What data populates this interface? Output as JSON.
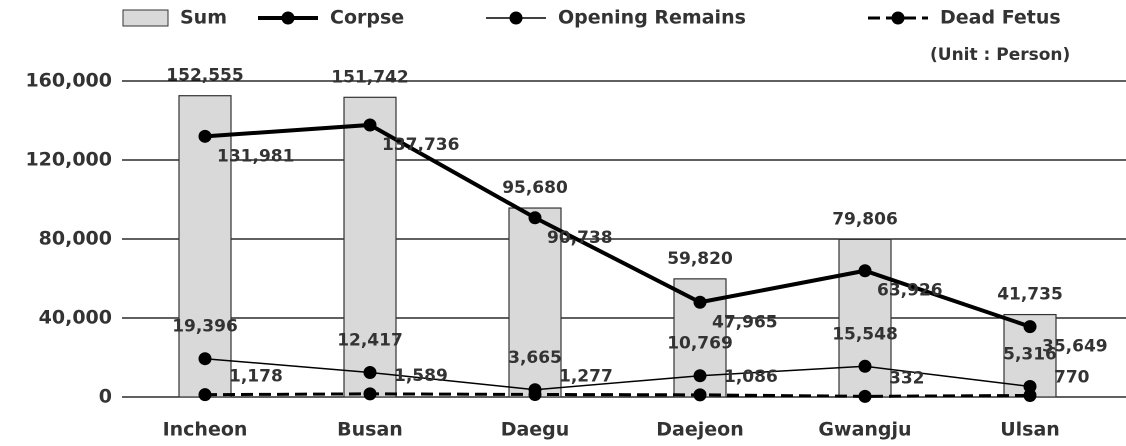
{
  "chart_data": {
    "type": "combo",
    "unit": "(Unit : Person)",
    "categories": [
      "Incheon",
      "Busan",
      "Daegu",
      "Daejeon",
      "Gwangju",
      "Ulsan"
    ],
    "ylim": [
      0,
      160000
    ],
    "yticks": [
      0,
      {
        "value": 40000,
        "label": "40,000"
      },
      {
        "value": 80000,
        "label": "80,000"
      },
      {
        "value": 120000,
        "label": "120,000"
      },
      {
        "value": 160000,
        "label": "160,000"
      }
    ],
    "grid": true,
    "series": [
      {
        "name": "Sum",
        "type": "bar",
        "color": "#d9d9d9",
        "values": [
          152555,
          151742,
          95680,
          59820,
          79806,
          41735
        ],
        "value_labels": [
          "152,555",
          "151,742",
          "95,680",
          "59,820",
          "79,806",
          "41,735"
        ]
      },
      {
        "name": "Corpse",
        "type": "line",
        "color": "#000000",
        "width": 4,
        "dashed": false,
        "values": [
          131981,
          137736,
          90738,
          47965,
          63926,
          35649
        ],
        "value_labels": [
          "131,981",
          "137,736",
          "90,738",
          "47,965",
          "63,926",
          "35,649"
        ]
      },
      {
        "name": "Opening Remains",
        "type": "line",
        "color": "#000000",
        "width": 1.5,
        "dashed": false,
        "values": [
          19396,
          12417,
          3665,
          10769,
          15548,
          5316
        ],
        "value_labels": [
          "19,396",
          "12,417",
          "3,665",
          "10,769",
          "15,548",
          "5,316"
        ]
      },
      {
        "name": "Dead Fetus",
        "type": "line",
        "color": "#000000",
        "width": 3,
        "dashed": true,
        "values": [
          1178,
          1589,
          1277,
          1086,
          332,
          770
        ],
        "value_labels": [
          "1,178",
          "1,589",
          "1,277",
          "1,086",
          "332",
          "770"
        ]
      }
    ]
  }
}
